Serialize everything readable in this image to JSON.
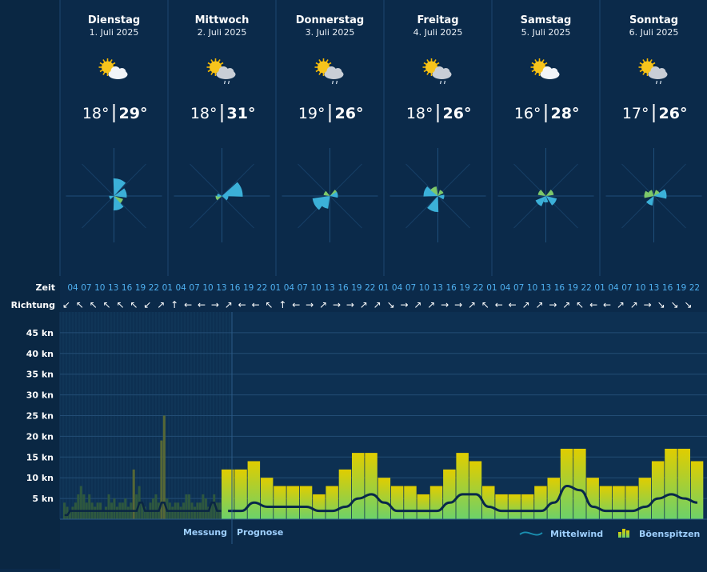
{
  "days": [
    {
      "name": "Dienstag",
      "date": "1. Juli 2025",
      "icon": "sun-cloud-icon",
      "tmin": "18°",
      "tmax": "29°"
    },
    {
      "name": "Mittwoch",
      "date": "2. Juli 2025",
      "icon": "sun-cloud-drizzle-icon",
      "tmin": "18°",
      "tmax": "31°"
    },
    {
      "name": "Donnerstag",
      "date": "3. Juli 2025",
      "icon": "sun-cloud-drizzle-icon",
      "tmin": "19°",
      "tmax": "26°"
    },
    {
      "name": "Freitag",
      "date": "4. Juli 2025",
      "icon": "sun-cloud-drizzle-icon",
      "tmin": "18°",
      "tmax": "26°"
    },
    {
      "name": "Samstag",
      "date": "5. Juli 2025",
      "icon": "sun-cloud-icon",
      "tmin": "16°",
      "tmax": "28°"
    },
    {
      "name": "Sonntag",
      "date": "6. Juli 2025",
      "icon": "sun-cloud-drizzle-icon",
      "tmin": "17°",
      "tmax": "26°"
    }
  ],
  "rows": {
    "time_label": "Zeit",
    "direction_label": "Richtung"
  },
  "hours": [
    "04",
    "07",
    "10",
    "13",
    "16",
    "19",
    "22",
    "01",
    "04",
    "07",
    "10",
    "13",
    "16",
    "19",
    "22",
    "01",
    "04",
    "07",
    "10",
    "13",
    "16",
    "19",
    "22",
    "01",
    "04",
    "07",
    "10",
    "13",
    "16",
    "19",
    "22",
    "01",
    "04",
    "07",
    "10",
    "13",
    "16",
    "19",
    "22",
    "01",
    "04",
    "07",
    "10",
    "13",
    "16",
    "19",
    "22"
  ],
  "directions": [
    "↙",
    "↖",
    "↖",
    "↖",
    "↖",
    "↖",
    "↙",
    "↗",
    "↑",
    "←",
    "←",
    "→",
    "↗",
    "←",
    "←",
    "↖",
    "↑",
    "←",
    "→",
    "↗",
    "→",
    "→",
    "↗",
    "↗",
    "↘",
    "→",
    "↗",
    "↗",
    "→",
    "→",
    "↗",
    "↖",
    "←",
    "←",
    "↗",
    "↗",
    "→",
    "↗",
    "↖",
    "←",
    "←",
    "↗",
    "↗",
    "→",
    "↘",
    "↘",
    "↘"
  ],
  "labels": {
    "measurement": "Messung",
    "forecast": "Prognose",
    "mean_wind": "Mittelwind",
    "gusts": "Böenspitzen"
  },
  "colors": {
    "background": "#0b2a4a",
    "rose_blue": "#3bb0d8",
    "rose_green": "#7dc86a",
    "gust_top": "#e0cd00",
    "gust_bottom": "#6cd16a",
    "measured_bar": "#2f5a3e",
    "mean_line": "#08284a"
  },
  "chart_data": {
    "type": "bar",
    "ylabel": "kn",
    "ylim": [
      0,
      50
    ],
    "yticks": [
      "45 kn",
      "40 kn",
      "35 kn",
      "30 kn",
      "25 kn",
      "20 kn",
      "15 kn",
      "10 kn",
      "5 kn"
    ],
    "yticks_values": [
      45,
      40,
      35,
      30,
      25,
      20,
      15,
      10,
      5
    ],
    "measured_gusts": [
      4,
      3,
      2,
      3,
      4,
      6,
      8,
      6,
      4,
      6,
      4,
      3,
      4,
      4,
      2,
      3,
      6,
      4,
      5,
      3,
      4,
      4,
      5,
      3,
      4,
      12,
      6,
      8,
      4,
      3,
      2,
      4,
      5,
      6,
      4,
      19,
      25,
      5,
      4,
      3,
      4,
      4,
      3,
      4,
      6,
      6,
      4,
      3,
      4,
      4,
      6,
      5,
      3,
      4,
      6,
      4,
      4,
      5,
      6,
      7
    ],
    "measured_mean": [
      1,
      1,
      2,
      2,
      2,
      2,
      2,
      2,
      2,
      2,
      2,
      2,
      2,
      2,
      2,
      2,
      2,
      2,
      2,
      2,
      2,
      2,
      2,
      2,
      2,
      2,
      2,
      4,
      4,
      2,
      2,
      2,
      2,
      2,
      2,
      4,
      4,
      2,
      2,
      2,
      2,
      2,
      2,
      2,
      2,
      2,
      2,
      2,
      2,
      2,
      2,
      2,
      2,
      4,
      4,
      2,
      2,
      2,
      2,
      4
    ],
    "forecast_gusts": [
      12,
      12,
      14,
      10,
      8,
      8,
      8,
      6,
      8,
      12,
      16,
      16,
      10,
      8,
      8,
      6,
      8,
      12,
      16,
      14,
      8,
      6,
      6,
      6,
      8,
      10,
      17,
      17,
      10,
      8,
      8,
      8,
      10,
      14,
      17,
      17,
      14
    ],
    "forecast_mean": [
      2,
      2,
      4,
      3,
      3,
      3,
      3,
      2,
      2,
      3,
      5,
      6,
      4,
      2,
      2,
      2,
      2,
      4,
      6,
      6,
      3,
      2,
      2,
      2,
      2,
      4,
      8,
      7,
      3,
      2,
      2,
      2,
      3,
      5,
      6,
      5,
      4
    ]
  }
}
